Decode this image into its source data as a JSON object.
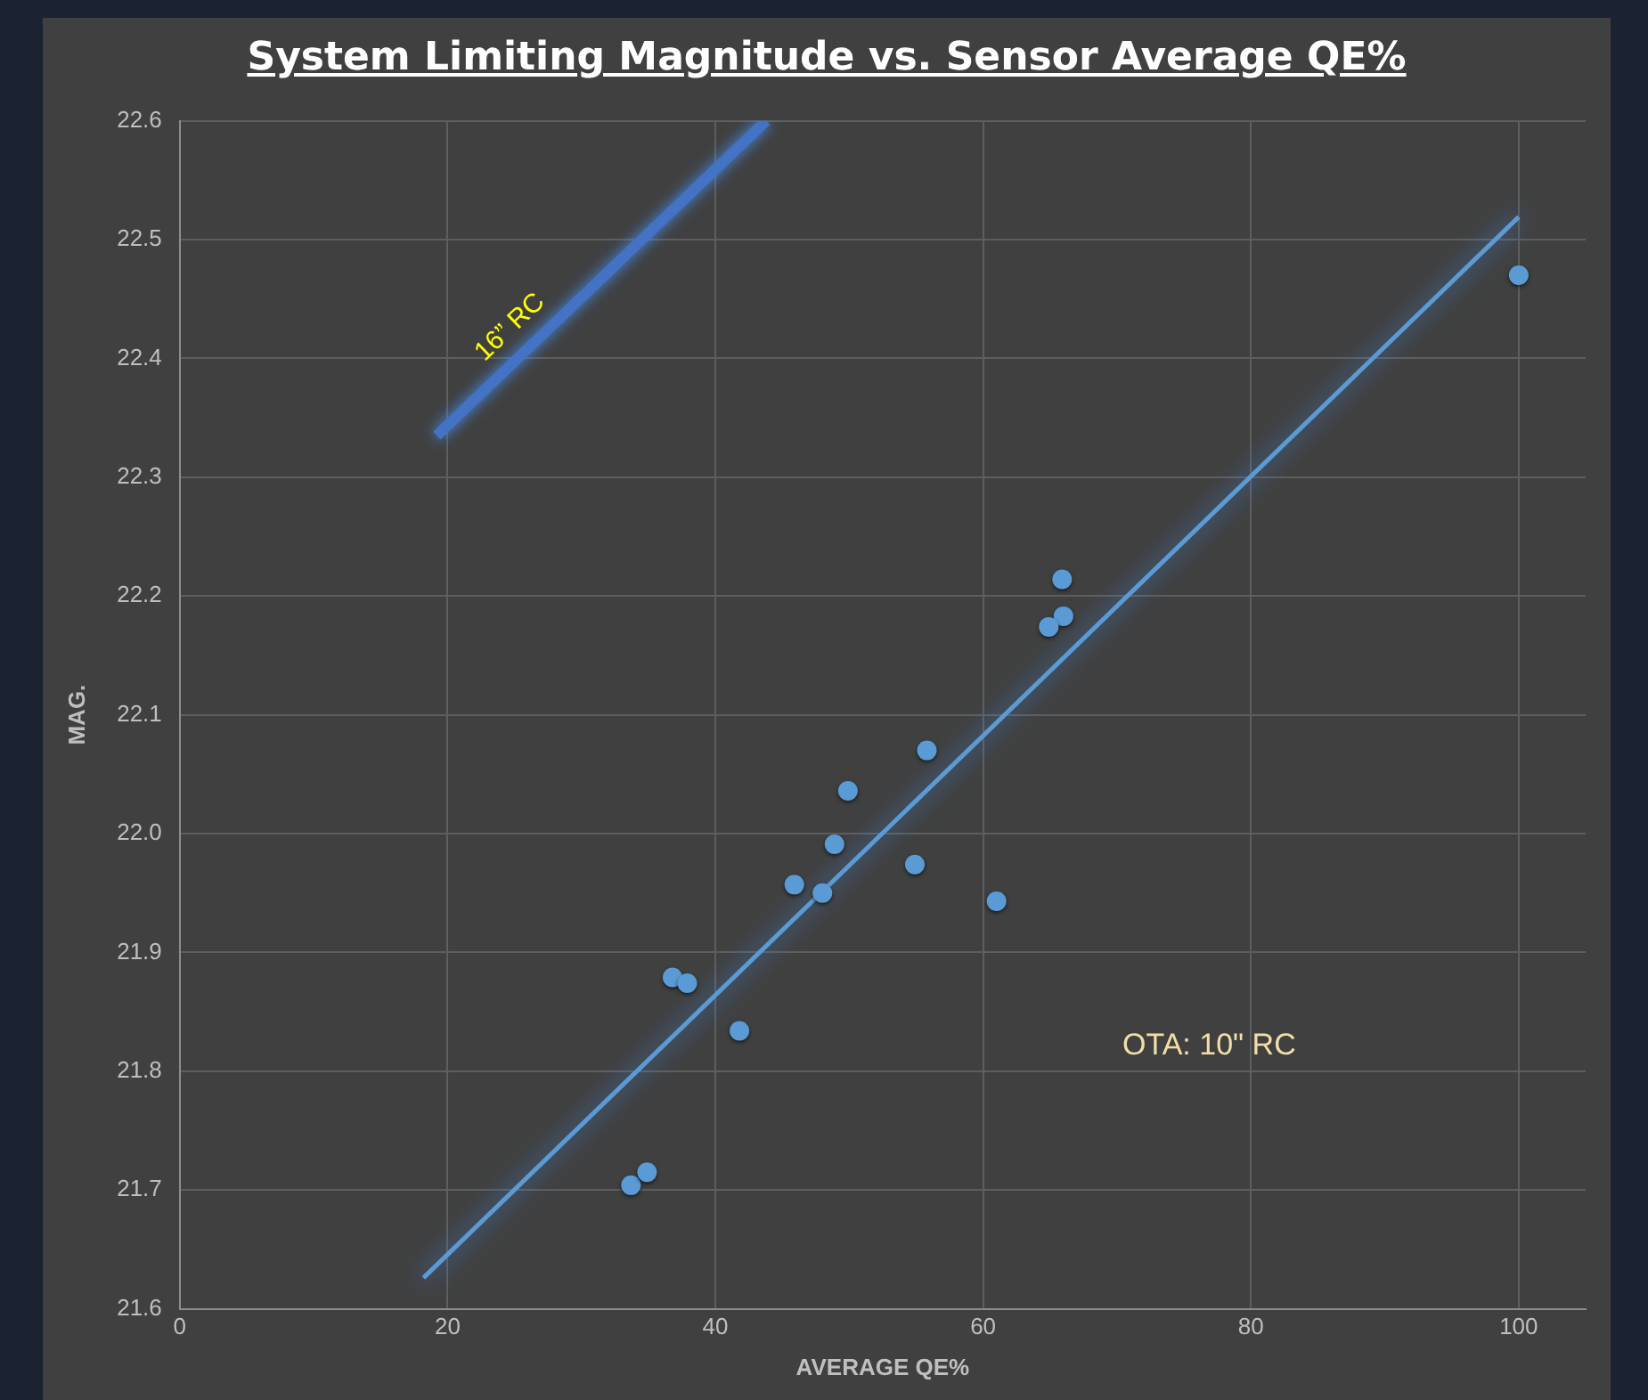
{
  "chart_data": {
    "type": "scatter",
    "title": "System Limiting Magnitude vs. Sensor Average QE%",
    "xlabel": "AVERAGE QE%",
    "ylabel": "MAG.",
    "xlim": [
      0,
      105
    ],
    "xticks": [
      0,
      20,
      40,
      60,
      80,
      100
    ],
    "ylim": [
      21.6,
      22.6
    ],
    "yticks": [
      21.6,
      21.7,
      21.8,
      21.9,
      {
        "value": 22.0,
        "label": "22.0"
      },
      22.1,
      22.2,
      22.3,
      22.4,
      22.5,
      22.6
    ],
    "grid": true,
    "legend": false,
    "series": [
      {
        "type": "scatter",
        "color": "#5b9bd5",
        "marker": "circle",
        "x": [
          65.9,
          66.0,
          64.9,
          55.8,
          49.9,
          48.9,
          54.9,
          45.9,
          48.0,
          61.0,
          36.8,
          37.9,
          41.8,
          33.7,
          34.9,
          100
        ],
        "values": [
          22.214,
          22.183,
          22.174,
          22.07,
          22.036,
          21.991,
          21.974,
          21.957,
          21.95,
          21.943,
          21.879,
          21.874,
          21.834,
          21.704,
          21.715,
          22.47
        ]
      },
      {
        "type": "line",
        "color": "#5b9bd5",
        "marker": "none",
        "x": [
          18.2,
          100
        ],
        "values": [
          21.626,
          22.519
        ]
      },
      {
        "type": "line",
        "name": "16” RC",
        "color": "#4472c4",
        "marker": "none",
        "x": [
          19.2,
          43.8
        ],
        "values": [
          22.335,
          22.6
        ]
      }
    ],
    "annotations": [
      "OTA: 10\" RC"
    ]
  }
}
